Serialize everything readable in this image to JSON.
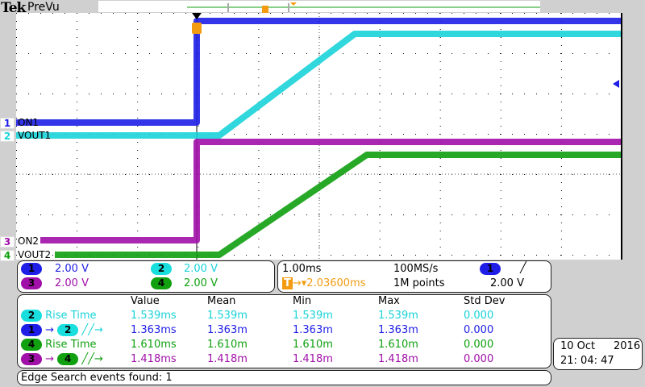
{
  "header": {
    "brand": "Tek",
    "mode": "PreVu"
  },
  "channels": [
    {
      "num": "1",
      "label": "ON1",
      "scale": "2.00 V",
      "color": "#1e1ee6"
    },
    {
      "num": "2",
      "label": "VOUT1",
      "scale": "2.00 V",
      "color": "#19d3d8"
    },
    {
      "num": "3",
      "label": "ON2",
      "scale": "2.00 V",
      "color": "#a010a8"
    },
    {
      "num": "4",
      "label": "VOUT2",
      "scale": "2.00 V",
      "color": "#10a010"
    }
  ],
  "timebase": {
    "scale": "1.00ms",
    "sample_rate": "100MS/s",
    "trigger_pos": "2.03600ms",
    "record": "1M points",
    "trigger_source": "1",
    "trigger_slope": "rising",
    "trigger_level": "2.00 V",
    "trigger_icon": "T"
  },
  "measurements": {
    "headers": [
      "Value",
      "Mean",
      "Min",
      "Max",
      "Std Dev"
    ],
    "rows": [
      {
        "src": "2",
        "dst": "",
        "name": "Rise Time",
        "value": "1.539ms",
        "mean": "1.539m",
        "min": "1.539m",
        "max": "1.539m",
        "std": "0.000"
      },
      {
        "src": "1",
        "dst": "2",
        "name": "╱╱→",
        "value": "1.363ms",
        "mean": "1.363m",
        "min": "1.363m",
        "max": "1.363m",
        "std": "0.000"
      },
      {
        "src": "4",
        "dst": "",
        "name": "Rise Time",
        "value": "1.610ms",
        "mean": "1.610m",
        "min": "1.610m",
        "max": "1.610m",
        "std": "0.000"
      },
      {
        "src": "3",
        "dst": "4",
        "name": "╱╱→",
        "value": "1.418ms",
        "mean": "1.418m",
        "min": "1.418m",
        "max": "1.418m",
        "std": "0.000"
      }
    ]
  },
  "status": "Edge Search events found: 1",
  "datetime": {
    "date": "10 Oct",
    "year": "2016",
    "time": "21: 04: 47"
  }
}
